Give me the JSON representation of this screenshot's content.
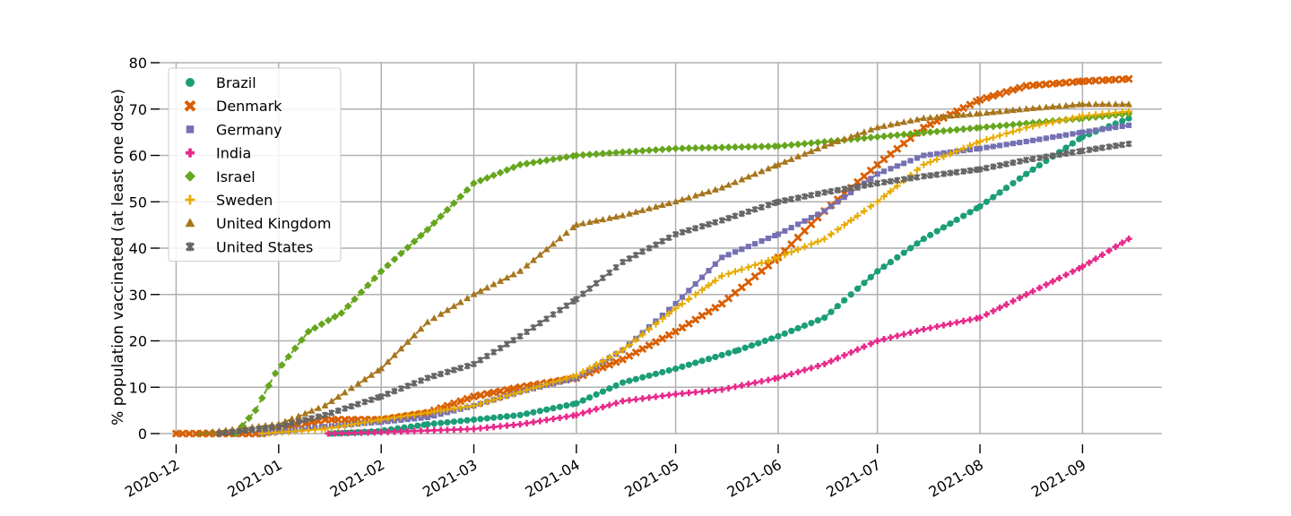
{
  "chart_data": {
    "type": "line",
    "title": "",
    "xlabel": "",
    "ylabel": "% population vaccinated (at least one dose)",
    "ylim": [
      0,
      80
    ],
    "xlim": [
      "2020-11-26",
      "2021-09-25"
    ],
    "y_ticks": [
      0,
      10,
      20,
      30,
      40,
      50,
      60,
      70,
      80
    ],
    "x_ticks": [
      "2020-12",
      "2021-01",
      "2021-02",
      "2021-03",
      "2021-04",
      "2021-05",
      "2021-06",
      "2021-07",
      "2021-08",
      "2021-09"
    ],
    "grid": true,
    "legend_position": "top-left",
    "series": [
      {
        "name": "Brazil",
        "color": "#1b9e77",
        "marker": "circle",
        "points": [
          [
            "2021-01-17",
            0.0
          ],
          [
            "2021-01-31",
            0.5
          ],
          [
            "2021-02-15",
            2.0
          ],
          [
            "2021-03-01",
            3.0
          ],
          [
            "2021-03-15",
            4.0
          ],
          [
            "2021-04-01",
            6.5
          ],
          [
            "2021-04-15",
            11.0
          ],
          [
            "2021-05-01",
            14.0
          ],
          [
            "2021-05-20",
            18.0
          ],
          [
            "2021-06-01",
            21.0
          ],
          [
            "2021-06-15",
            25.0
          ],
          [
            "2021-07-01",
            35.0
          ],
          [
            "2021-07-15",
            42.0
          ],
          [
            "2021-08-01",
            49.0
          ],
          [
            "2021-08-15",
            56.0
          ],
          [
            "2021-09-01",
            64.0
          ],
          [
            "2021-09-15",
            68.0
          ]
        ]
      },
      {
        "name": "Denmark",
        "color": "#d95f02",
        "marker": "x",
        "points": [
          [
            "2020-12-01",
            0.0
          ],
          [
            "2020-12-27",
            0.0
          ],
          [
            "2021-01-01",
            1.0
          ],
          [
            "2021-01-15",
            3.0
          ],
          [
            "2021-02-01",
            3.0
          ],
          [
            "2021-02-15",
            4.5
          ],
          [
            "2021-03-01",
            8.0
          ],
          [
            "2021-03-15",
            10.0
          ],
          [
            "2021-04-01",
            12.0
          ],
          [
            "2021-04-15",
            16.0
          ],
          [
            "2021-05-01",
            22.0
          ],
          [
            "2021-05-15",
            28.0
          ],
          [
            "2021-06-01",
            38.0
          ],
          [
            "2021-06-15",
            48.0
          ],
          [
            "2021-07-01",
            58.0
          ],
          [
            "2021-07-15",
            66.0
          ],
          [
            "2021-08-01",
            72.0
          ],
          [
            "2021-08-15",
            75.0
          ],
          [
            "2021-09-01",
            76.0
          ],
          [
            "2021-09-15",
            76.5
          ]
        ]
      },
      {
        "name": "Germany",
        "color": "#7570b3",
        "marker": "square",
        "points": [
          [
            "2020-12-27",
            0.0
          ],
          [
            "2021-01-15",
            1.5
          ],
          [
            "2021-02-01",
            2.5
          ],
          [
            "2021-02-15",
            3.5
          ],
          [
            "2021-03-01",
            6.0
          ],
          [
            "2021-03-15",
            9.0
          ],
          [
            "2021-04-01",
            12.0
          ],
          [
            "2021-04-15",
            18.0
          ],
          [
            "2021-05-01",
            28.0
          ],
          [
            "2021-05-15",
            38.0
          ],
          [
            "2021-06-01",
            43.0
          ],
          [
            "2021-06-15",
            48.0
          ],
          [
            "2021-07-01",
            56.0
          ],
          [
            "2021-07-15",
            60.0
          ],
          [
            "2021-08-01",
            61.5
          ],
          [
            "2021-08-15",
            63.0
          ],
          [
            "2021-09-01",
            65.0
          ],
          [
            "2021-09-15",
            66.5
          ]
        ]
      },
      {
        "name": "India",
        "color": "#e7298a",
        "marker": "plus",
        "points": [
          [
            "2021-01-16",
            0.0
          ],
          [
            "2021-02-01",
            0.3
          ],
          [
            "2021-03-01",
            1.0
          ],
          [
            "2021-03-15",
            2.0
          ],
          [
            "2021-04-01",
            4.0
          ],
          [
            "2021-04-15",
            7.0
          ],
          [
            "2021-05-01",
            8.5
          ],
          [
            "2021-05-15",
            9.5
          ],
          [
            "2021-06-01",
            12.0
          ],
          [
            "2021-06-15",
            15.0
          ],
          [
            "2021-07-01",
            20.0
          ],
          [
            "2021-07-15",
            22.5
          ],
          [
            "2021-08-01",
            25.0
          ],
          [
            "2021-08-15",
            30.0
          ],
          [
            "2021-09-01",
            36.0
          ],
          [
            "2021-09-15",
            42.0
          ]
        ]
      },
      {
        "name": "Israel",
        "color": "#66a61e",
        "marker": "diamond",
        "points": [
          [
            "2020-12-19",
            0.0
          ],
          [
            "2020-12-25",
            5.0
          ],
          [
            "2020-12-31",
            13.0
          ],
          [
            "2021-01-10",
            22.0
          ],
          [
            "2021-01-20",
            26.0
          ],
          [
            "2021-02-01",
            35.0
          ],
          [
            "2021-02-15",
            44.0
          ],
          [
            "2021-03-01",
            54.0
          ],
          [
            "2021-03-15",
            58.0
          ],
          [
            "2021-04-01",
            60.0
          ],
          [
            "2021-05-01",
            61.5
          ],
          [
            "2021-06-01",
            62.0
          ],
          [
            "2021-07-01",
            64.0
          ],
          [
            "2021-08-01",
            66.0
          ],
          [
            "2021-09-01",
            68.0
          ],
          [
            "2021-09-15",
            69.0
          ]
        ]
      },
      {
        "name": "Sweden",
        "color": "#e6ab02",
        "marker": "plus-bold",
        "points": [
          [
            "2020-12-27",
            0.0
          ],
          [
            "2021-01-15",
            1.0
          ],
          [
            "2021-02-01",
            3.0
          ],
          [
            "2021-02-15",
            4.5
          ],
          [
            "2021-03-01",
            6.0
          ],
          [
            "2021-03-15",
            9.0
          ],
          [
            "2021-04-01",
            12.5
          ],
          [
            "2021-04-15",
            18.0
          ],
          [
            "2021-05-01",
            27.0
          ],
          [
            "2021-05-15",
            34.0
          ],
          [
            "2021-06-01",
            38.0
          ],
          [
            "2021-06-15",
            42.0
          ],
          [
            "2021-07-01",
            50.0
          ],
          [
            "2021-07-15",
            58.0
          ],
          [
            "2021-08-01",
            63.0
          ],
          [
            "2021-08-15",
            66.0
          ],
          [
            "2021-09-01",
            68.5
          ],
          [
            "2021-09-15",
            69.5
          ]
        ]
      },
      {
        "name": "United Kingdom",
        "color": "#a6761d",
        "marker": "triangle",
        "points": [
          [
            "2020-12-08",
            0.0
          ],
          [
            "2020-12-20",
            1.0
          ],
          [
            "2021-01-01",
            2.0
          ],
          [
            "2021-01-15",
            6.0
          ],
          [
            "2021-02-01",
            14.0
          ],
          [
            "2021-02-15",
            24.0
          ],
          [
            "2021-03-01",
            30.0
          ],
          [
            "2021-03-15",
            35.0
          ],
          [
            "2021-04-01",
            45.0
          ],
          [
            "2021-04-15",
            47.0
          ],
          [
            "2021-05-01",
            50.0
          ],
          [
            "2021-05-15",
            53.0
          ],
          [
            "2021-06-01",
            58.0
          ],
          [
            "2021-06-15",
            62.0
          ],
          [
            "2021-07-01",
            66.0
          ],
          [
            "2021-07-15",
            68.0
          ],
          [
            "2021-08-01",
            69.0
          ],
          [
            "2021-08-15",
            70.0
          ],
          [
            "2021-09-01",
            71.0
          ],
          [
            "2021-09-15",
            71.0
          ]
        ]
      },
      {
        "name": "United States",
        "color": "#666666",
        "marker": "star",
        "points": [
          [
            "2020-12-14",
            0.0
          ],
          [
            "2021-01-01",
            1.5
          ],
          [
            "2021-01-15",
            4.0
          ],
          [
            "2021-02-01",
            8.0
          ],
          [
            "2021-02-15",
            12.0
          ],
          [
            "2021-03-01",
            15.0
          ],
          [
            "2021-03-15",
            21.0
          ],
          [
            "2021-04-01",
            29.0
          ],
          [
            "2021-04-15",
            37.0
          ],
          [
            "2021-05-01",
            43.0
          ],
          [
            "2021-05-15",
            46.0
          ],
          [
            "2021-06-01",
            50.0
          ],
          [
            "2021-06-15",
            52.0
          ],
          [
            "2021-07-01",
            54.0
          ],
          [
            "2021-07-15",
            55.5
          ],
          [
            "2021-08-01",
            57.0
          ],
          [
            "2021-08-15",
            59.0
          ],
          [
            "2021-09-01",
            61.0
          ],
          [
            "2021-09-15",
            62.5
          ]
        ]
      }
    ]
  }
}
